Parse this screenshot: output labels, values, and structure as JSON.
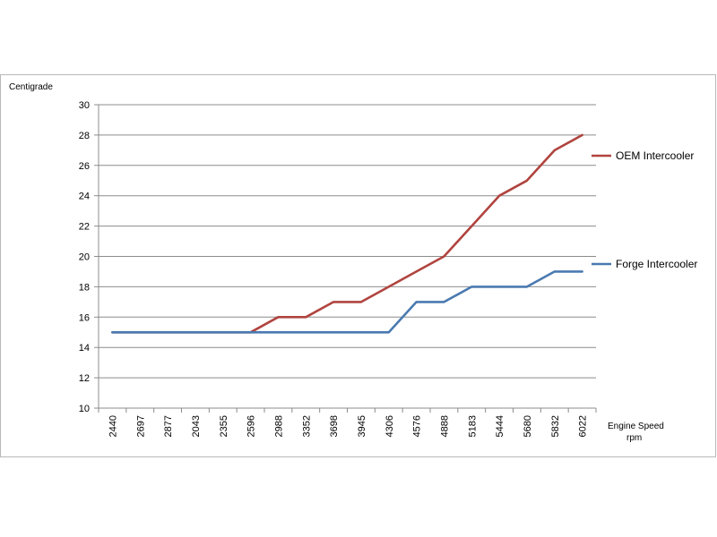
{
  "chart_data": {
    "type": "line",
    "title": "",
    "ylabel": "Centigrade",
    "xlabel_line1": "Engine Speed",
    "xlabel_line2": "rpm",
    "categories": [
      "2440",
      "2697",
      "2877",
      "2043",
      "2355",
      "2596",
      "2988",
      "3352",
      "3698",
      "3945",
      "4306",
      "4576",
      "4888",
      "5183",
      "5444",
      "5680",
      "5832",
      "6022"
    ],
    "ylim": [
      10,
      30
    ],
    "yticks": [
      10,
      12,
      14,
      16,
      18,
      20,
      22,
      24,
      26,
      28,
      30
    ],
    "grid": true,
    "legend_position": "right",
    "series": [
      {
        "name": "OEM Intercooler",
        "color": "#b0443f",
        "values": [
          15,
          15,
          15,
          15,
          15,
          15,
          16,
          16,
          17,
          17,
          18,
          19,
          20,
          22,
          24,
          25,
          27,
          28
        ]
      },
      {
        "name": "Forge Intercooler",
        "color": "#4a7ab0",
        "values": [
          15,
          15,
          15,
          15,
          15,
          15,
          15,
          15,
          15,
          15,
          15,
          17,
          17,
          18,
          18,
          18,
          19,
          19
        ]
      }
    ]
  }
}
